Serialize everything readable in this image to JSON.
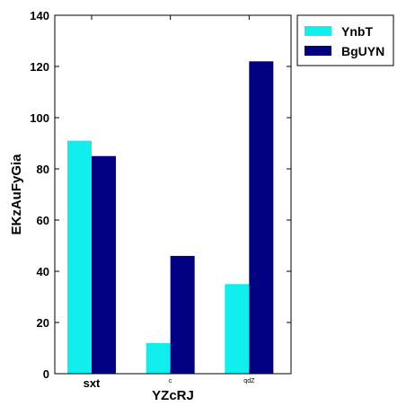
{
  "chart_data": {
    "type": "bar",
    "xlabel": "YZcRJ",
    "ylabel": "EKzAuFyGia",
    "categories": [
      "sxt",
      "c",
      "qdZ"
    ],
    "ylim": [
      0,
      140
    ],
    "yticks": [
      0,
      20,
      40,
      60,
      80,
      100,
      120,
      140
    ],
    "grid": false,
    "legend_position": "outside-top-right",
    "series": [
      {
        "name": "YnbT",
        "color": "#10eeee",
        "values": [
          91,
          12,
          35
        ]
      },
      {
        "name": "BgUYN",
        "color": "#000080",
        "values": [
          85,
          46,
          122
        ]
      }
    ]
  }
}
